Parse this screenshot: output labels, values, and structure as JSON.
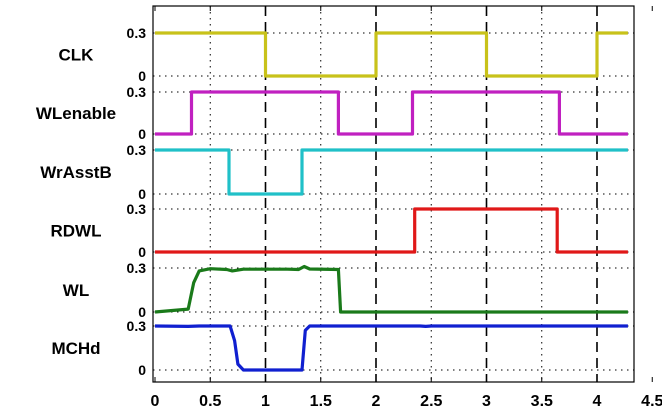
{
  "chart_data": {
    "type": "line",
    "title": "",
    "xlabel": "",
    "ylabel": "",
    "xlim": [
      0,
      4.5
    ],
    "x_ticks": [
      "0",
      "0.5",
      "1",
      "1.5",
      "2",
      "2.5",
      "3",
      "3.5",
      "4",
      "4.5"
    ],
    "y_ticks": [
      "0",
      "0.3"
    ],
    "grid": "dotted",
    "vertical_markers": [
      1,
      2,
      3,
      4
    ],
    "series": [
      {
        "name": "CLK",
        "color": "#c8c21a",
        "points": [
          [
            0,
            0.3
          ],
          [
            1,
            0.3
          ],
          [
            1,
            0
          ],
          [
            2,
            0
          ],
          [
            2,
            0.3
          ],
          [
            3,
            0.3
          ],
          [
            3,
            0
          ],
          [
            4,
            0
          ],
          [
            4,
            0.3
          ],
          [
            4.28,
            0.3
          ]
        ]
      },
      {
        "name": "WLenable",
        "color": "#c020c0",
        "points": [
          [
            0,
            0
          ],
          [
            0.33,
            0
          ],
          [
            0.33,
            0.3
          ],
          [
            1.66,
            0.3
          ],
          [
            1.66,
            0
          ],
          [
            2.33,
            0
          ],
          [
            2.33,
            0.3
          ],
          [
            3.66,
            0.3
          ],
          [
            3.66,
            0
          ],
          [
            4.28,
            0
          ]
        ]
      },
      {
        "name": "WrAsstB",
        "color": "#20c0c8",
        "points": [
          [
            0,
            0.3
          ],
          [
            0.67,
            0.3
          ],
          [
            0.67,
            0
          ],
          [
            1.33,
            0
          ],
          [
            1.33,
            0.3
          ],
          [
            4.28,
            0.3
          ]
        ]
      },
      {
        "name": "RDWL",
        "color": "#e01818",
        "points": [
          [
            0,
            0
          ],
          [
            2.35,
            0
          ],
          [
            2.35,
            0.3
          ],
          [
            3.64,
            0.3
          ],
          [
            3.64,
            0
          ],
          [
            4.28,
            0
          ]
        ]
      },
      {
        "name": "WL",
        "color": "#1a7a1a",
        "points": [
          [
            0,
            0
          ],
          [
            0.3,
            0.02
          ],
          [
            0.35,
            0.2
          ],
          [
            0.4,
            0.28
          ],
          [
            0.5,
            0.295
          ],
          [
            0.65,
            0.29
          ],
          [
            0.7,
            0.28
          ],
          [
            0.8,
            0.292
          ],
          [
            1.0,
            0.292
          ],
          [
            1.2,
            0.292
          ],
          [
            1.3,
            0.29
          ],
          [
            1.35,
            0.31
          ],
          [
            1.4,
            0.293
          ],
          [
            1.66,
            0.29
          ],
          [
            1.68,
            0
          ],
          [
            4.28,
            0
          ]
        ]
      },
      {
        "name": "MCHd",
        "color": "#1020d0",
        "points": [
          [
            0,
            0.3
          ],
          [
            0.3,
            0.297
          ],
          [
            0.4,
            0.3
          ],
          [
            0.62,
            0.3
          ],
          [
            0.68,
            0.3
          ],
          [
            0.72,
            0.2
          ],
          [
            0.75,
            0.04
          ],
          [
            0.8,
            0
          ],
          [
            1.0,
            0
          ],
          [
            1.2,
            0
          ],
          [
            1.33,
            0
          ],
          [
            1.36,
            0.27
          ],
          [
            1.4,
            0.3
          ],
          [
            2.4,
            0.3
          ],
          [
            2.45,
            0.297
          ],
          [
            2.5,
            0.3
          ],
          [
            4.28,
            0.3
          ]
        ]
      }
    ]
  }
}
